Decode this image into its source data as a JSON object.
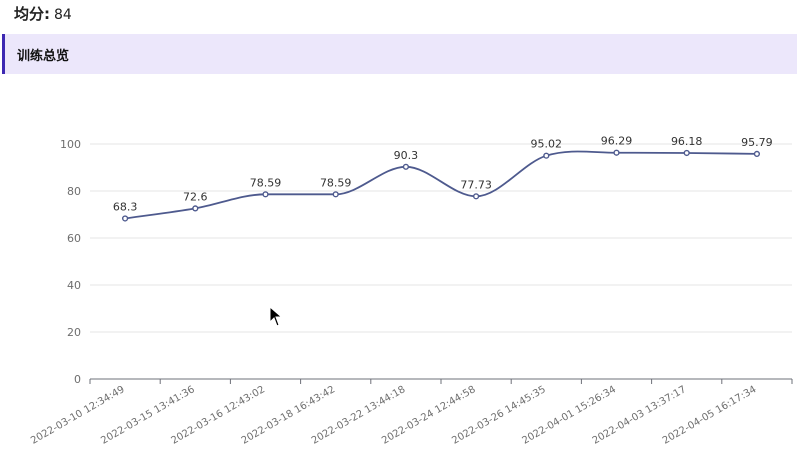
{
  "summary": {
    "avg_label": "均分:",
    "avg_value": "84"
  },
  "section": {
    "title": "训练总览"
  },
  "chart_data": {
    "type": "line",
    "smooth": true,
    "categories": [
      "2022-03-10 12:34:49",
      "2022-03-15 13:41:36",
      "2022-03-16 12:43:02",
      "2022-03-18 16:43:42",
      "2022-03-22 13:44:18",
      "2022-03-24 12:44:58",
      "2022-03-26 14:45:35",
      "2022-04-01 15:26:34",
      "2022-04-03 13:37:17",
      "2022-04-05 16:17:34"
    ],
    "values": [
      68.3,
      72.6,
      78.59,
      78.59,
      90.3,
      77.73,
      95.02,
      96.29,
      96.18,
      95.79
    ],
    "ylim": [
      0,
      100
    ],
    "yticks": [
      0,
      20,
      40,
      60,
      80,
      100
    ],
    "grid": true,
    "line_color": "#4e5a8e"
  }
}
